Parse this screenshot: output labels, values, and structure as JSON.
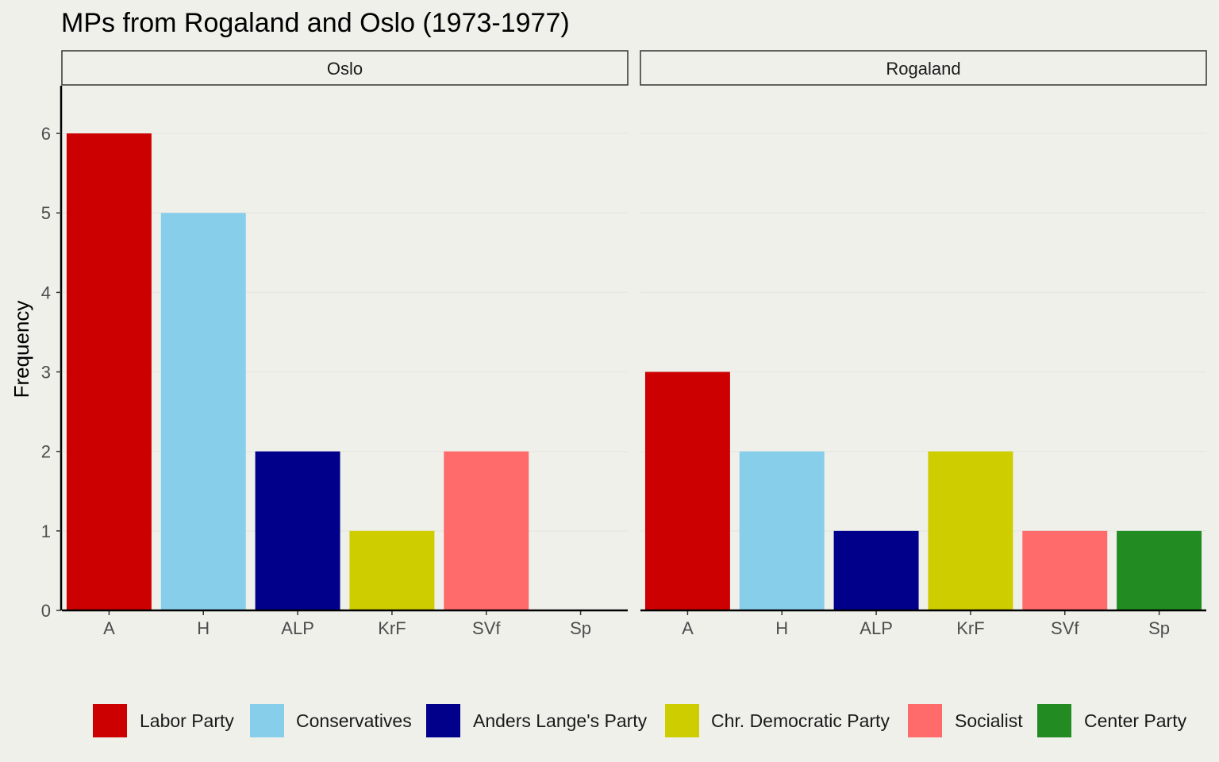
{
  "chart_data": {
    "type": "bar",
    "title": "MPs from Rogaland and Oslo (1973-1977)",
    "xlabel": "",
    "ylabel": "Frequency",
    "ylim": [
      0,
      6.6
    ],
    "yticks": [
      0,
      1,
      2,
      3,
      4,
      5,
      6
    ],
    "grid": true,
    "legend_position": "bottom",
    "categories": [
      "A",
      "H",
      "ALP",
      "KrF",
      "SVf",
      "Sp"
    ],
    "colors": [
      "#cc0000",
      "#87ceeb",
      "#00008b",
      "#cdcd00",
      "#ff6a6a",
      "#228b22"
    ],
    "legend": [
      "Labor Party",
      "Conservatives",
      "Anders Lange's Party",
      "Chr. Democratic Party",
      "Socialist",
      "Center Party"
    ],
    "panels": [
      {
        "name": "Oslo",
        "values": [
          6,
          5,
          2,
          1,
          2,
          0
        ]
      },
      {
        "name": "Rogaland",
        "values": [
          3,
          2,
          1,
          2,
          1,
          1
        ]
      }
    ]
  }
}
